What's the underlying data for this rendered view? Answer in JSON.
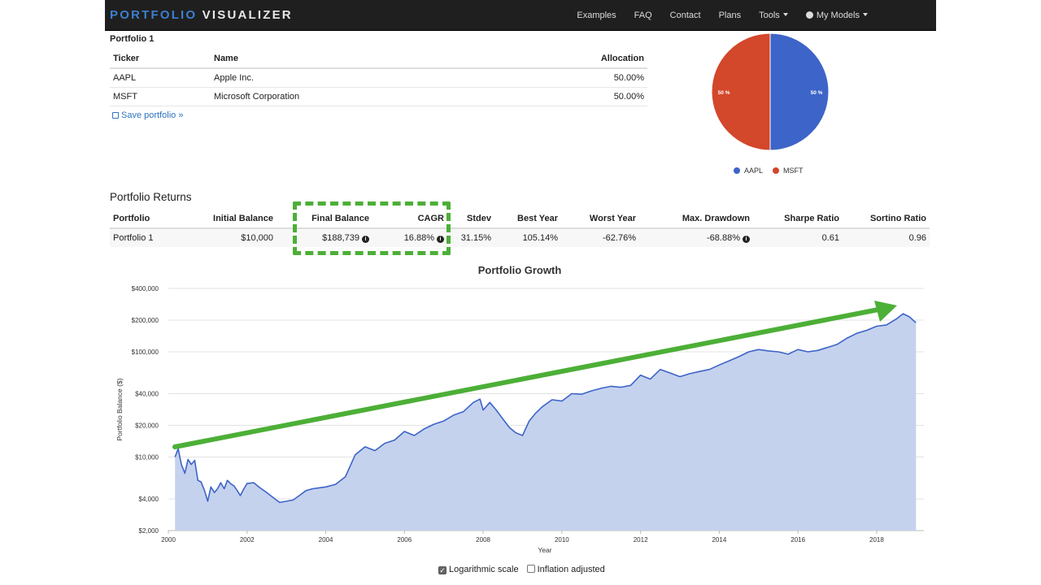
{
  "nav": {
    "brand_part1": "PORTFOLIO",
    "brand_part2": "VISUALIZER",
    "items": [
      "Examples",
      "FAQ",
      "Contact",
      "Plans"
    ],
    "tools": "Tools",
    "my_models": "My Models"
  },
  "portfolio": {
    "title": "Portfolio 1",
    "headers": {
      "ticker": "Ticker",
      "name": "Name",
      "allocation": "Allocation"
    },
    "rows": [
      {
        "ticker": "AAPL",
        "name": "Apple Inc.",
        "allocation": "50.00%"
      },
      {
        "ticker": "MSFT",
        "name": "Microsoft Corporation",
        "allocation": "50.00%"
      }
    ],
    "save_label": "Save portfolio »"
  },
  "pie": {
    "slices": [
      {
        "name": "AAPL",
        "value": 50,
        "label": "50 %",
        "color": "#3d64c8"
      },
      {
        "name": "MSFT",
        "value": 50,
        "label": "50 %",
        "color": "#d3472b"
      }
    ]
  },
  "returns": {
    "title": "Portfolio Returns",
    "headers": {
      "portfolio": "Portfolio",
      "initial": "Initial Balance",
      "final": "Final Balance",
      "cagr": "CAGR",
      "stdev": "Stdev",
      "best": "Best Year",
      "worst": "Worst Year",
      "maxdd": "Max. Drawdown",
      "sharpe": "Sharpe Ratio",
      "sortino": "Sortino Ratio"
    },
    "row": {
      "portfolio": "Portfolio 1",
      "initial": "$10,000",
      "final": "$188,739",
      "cagr": "16.88%",
      "stdev": "31.15%",
      "best": "105.14%",
      "worst": "-62.76%",
      "maxdd": "-68.88%",
      "sharpe": "0.61",
      "sortino": "0.96"
    }
  },
  "chart_data": {
    "type": "area",
    "title": "Portfolio Growth",
    "xlabel": "Year",
    "ylabel": "Portfolio Balance ($)",
    "log_scale": true,
    "ylim": [
      2000,
      400000
    ],
    "xlim": [
      2000,
      2019.2
    ],
    "y_ticks": [
      2000,
      4000,
      10000,
      20000,
      40000,
      100000,
      200000,
      400000
    ],
    "y_tick_labels": [
      "$2,000",
      "$4,000",
      "$10,000",
      "$20,000",
      "$40,000",
      "$100,000",
      "$200,000",
      "$400,000"
    ],
    "x_ticks": [
      2000,
      2002,
      2004,
      2006,
      2008,
      2010,
      2012,
      2014,
      2016,
      2018
    ],
    "x_tick_labels": [
      "2000",
      "2002",
      "2004",
      "2006",
      "2008",
      "2010",
      "2012",
      "2014",
      "2016",
      "2018"
    ],
    "series": [
      {
        "color": "#3d64c8",
        "fill": "#c5d2ee",
        "x": [
          2000.17,
          2000.25,
          2000.33,
          2000.42,
          2000.5,
          2000.58,
          2000.67,
          2000.75,
          2000.83,
          2000.92,
          2001.0,
          2001.08,
          2001.17,
          2001.25,
          2001.33,
          2001.42,
          2001.5,
          2001.58,
          2001.67,
          2001.75,
          2001.83,
          2001.92,
          2002.0,
          2002.17,
          2002.33,
          2002.5,
          2002.67,
          2002.83,
          2003.0,
          2003.17,
          2003.33,
          2003.5,
          2003.67,
          2003.83,
          2004.0,
          2004.25,
          2004.5,
          2004.75,
          2005.0,
          2005.25,
          2005.5,
          2005.75,
          2006.0,
          2006.25,
          2006.5,
          2006.75,
          2007.0,
          2007.25,
          2007.5,
          2007.75,
          2007.92,
          2008.0,
          2008.17,
          2008.33,
          2008.5,
          2008.67,
          2008.83,
          2009.0,
          2009.17,
          2009.33,
          2009.5,
          2009.75,
          2010.0,
          2010.25,
          2010.5,
          2010.75,
          2011.0,
          2011.25,
          2011.5,
          2011.75,
          2012.0,
          2012.25,
          2012.5,
          2012.75,
          2013.0,
          2013.25,
          2013.5,
          2013.75,
          2014.0,
          2014.25,
          2014.5,
          2014.75,
          2015.0,
          2015.25,
          2015.5,
          2015.75,
          2016.0,
          2016.25,
          2016.5,
          2016.75,
          2017.0,
          2017.25,
          2017.5,
          2017.75,
          2018.0,
          2018.25,
          2018.5,
          2018.67,
          2018.83,
          2019.0
        ],
        "y": [
          10000,
          12000,
          8500,
          7000,
          9500,
          8500,
          9300,
          6000,
          5800,
          4800,
          3800,
          5200,
          4600,
          5000,
          5700,
          5000,
          6000,
          5600,
          5300,
          4800,
          4300,
          5000,
          5600,
          5700,
          5100,
          4600,
          4100,
          3700,
          3800,
          3900,
          4300,
          4800,
          5000,
          5100,
          5200,
          5500,
          6500,
          10500,
          12500,
          11500,
          13500,
          14500,
          17500,
          16000,
          18500,
          20500,
          22000,
          25000,
          27000,
          33000,
          35500,
          28000,
          33000,
          28000,
          23000,
          19000,
          17000,
          16000,
          22000,
          26000,
          30000,
          35000,
          34000,
          40000,
          39500,
          42500,
          45000,
          47000,
          46000,
          48000,
          60000,
          55000,
          68000,
          63000,
          58000,
          62000,
          65000,
          68000,
          75000,
          82000,
          90000,
          100000,
          105000,
          102000,
          100000,
          95000,
          105000,
          100000,
          103000,
          110000,
          118000,
          135000,
          150000,
          160000,
          175000,
          180000,
          205000,
          230000,
          215000,
          188739
        ]
      }
    ]
  },
  "options": {
    "log": "Logarithmic scale",
    "inflation": "Inflation adjusted",
    "log_checked": true,
    "inflation_checked": false
  }
}
